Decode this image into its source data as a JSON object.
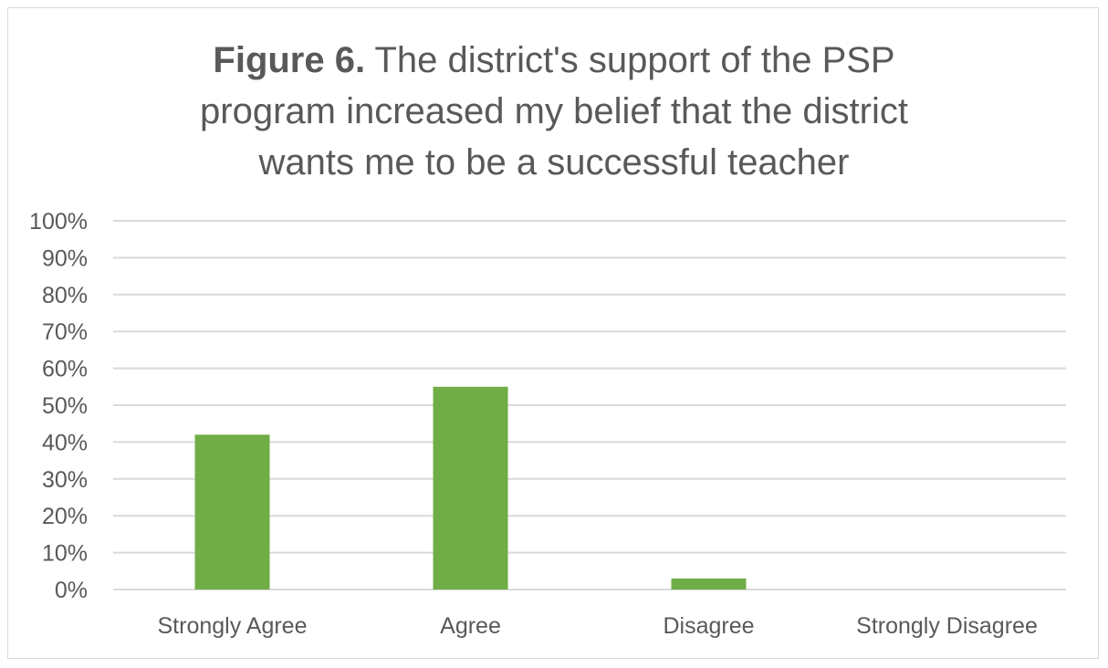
{
  "chart_data": {
    "type": "bar",
    "title_lead": "Figure 6.",
    "title_lines": [
      "The district's support of the PSP",
      "program increased my belief that the district",
      "wants me to be a successful teacher"
    ],
    "categories": [
      "Strongly Agree",
      "Agree",
      "Disagree",
      "Strongly Disagree"
    ],
    "series": [
      {
        "values": [
          42,
          55,
          3,
          0
        ]
      }
    ],
    "ylim": [
      0,
      100
    ],
    "yticks": [
      "0%",
      "10%",
      "20%",
      "30%",
      "40%",
      "50%",
      "60%",
      "70%",
      "80%",
      "90%",
      "100%"
    ],
    "grid": true,
    "legend": "none",
    "bar_color": "#70ad47",
    "grid_color": "#d9d9d9",
    "text_color": "#595959"
  }
}
